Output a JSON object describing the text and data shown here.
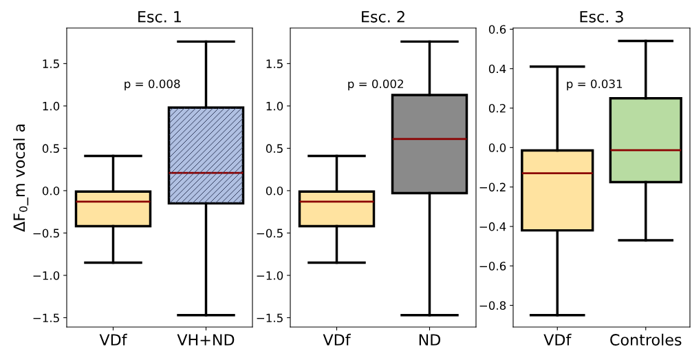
{
  "chart_data": [
    {
      "type": "box",
      "title": "Esc. 1",
      "ylabel": "ΔF$_{0}$_m vocal a",
      "categories": [
        "VDf",
        "VH+ND"
      ],
      "ylim": [
        -1.61,
        1.92
      ],
      "yticks": [
        {
          "value": -1.5,
          "label": "−1.5"
        },
        {
          "value": -1.0,
          "label": "−1.0"
        },
        {
          "value": -0.5,
          "label": "−0.5"
        },
        "0.0",
        0.5,
        "1.0",
        1.5
      ],
      "grid": false,
      "annotations": [
        "p = 0.008"
      ],
      "colors": [
        "#ffe3a0",
        "#b0c0e2"
      ],
      "boxes": [
        {
          "low": -0.85,
          "q1": -0.42,
          "median": -0.13,
          "q3": -0.01,
          "high": 0.41
        },
        {
          "low": -1.47,
          "q1": -0.15,
          "median": 0.21,
          "q3": 0.98,
          "high": 1.76
        }
      ]
    },
    {
      "type": "box",
      "title": "Esc. 2",
      "categories": [
        "VDf",
        "ND"
      ],
      "ylim": [
        -1.61,
        1.92
      ],
      "yticks": [
        {
          "value": -1.5,
          "label": "−1.5"
        },
        {
          "value": -1.0,
          "label": "−1.0"
        },
        {
          "value": -0.5,
          "label": "−0.5"
        },
        "0.0",
        0.5,
        "1.0",
        1.5
      ],
      "grid": false,
      "annotations": [
        "p = 0.002"
      ],
      "colors": [
        "#ffe3a0",
        "#8a8a8a"
      ],
      "boxes": [
        {
          "low": -0.85,
          "q1": -0.42,
          "median": -0.13,
          "q3": -0.01,
          "high": 0.41
        },
        {
          "low": -1.47,
          "q1": -0.03,
          "median": 0.61,
          "q3": 1.13,
          "high": 1.76
        }
      ]
    },
    {
      "type": "box",
      "title": "Esc. 3",
      "categories": [
        "VDf",
        "Controles"
      ],
      "ylim": [
        -0.91,
        0.606
      ],
      "yticks": [
        {
          "value": -0.8,
          "label": "−0.8"
        },
        {
          "value": -0.6,
          "label": "−0.6"
        },
        {
          "value": -0.4,
          "label": "−0.4"
        },
        {
          "value": -0.2,
          "label": "−0.2"
        },
        "0.0",
        0.2,
        0.4,
        0.6
      ],
      "grid": false,
      "annotations": [
        "p = 0.031"
      ],
      "colors": [
        "#ffe3a0",
        "#b8dca2"
      ],
      "boxes": [
        {
          "low": -0.85,
          "q1": -0.42,
          "median": -0.13,
          "q3": -0.015,
          "high": 0.41
        },
        {
          "low": -0.47,
          "q1": -0.175,
          "median": -0.013,
          "q3": 0.25,
          "high": 0.54
        }
      ]
    }
  ]
}
